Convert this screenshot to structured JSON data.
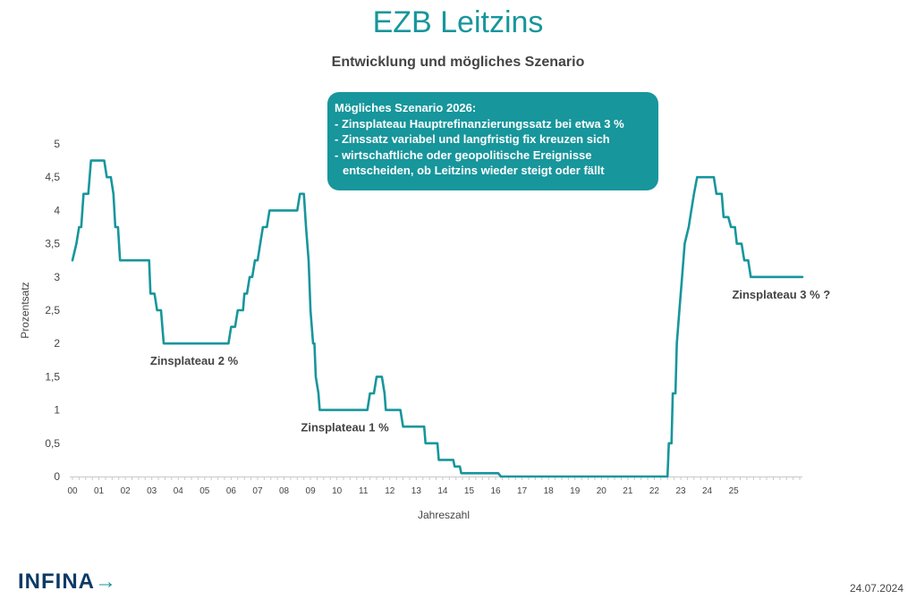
{
  "chart_data": {
    "type": "line",
    "title": "EZB Leitzins",
    "subtitle": "Entwicklung und mögliches Szenario",
    "xlabel": "Jahreszahl",
    "ylabel": "Prozentsatz",
    "ylim": [
      0,
      5
    ],
    "y_ticks": [
      {
        "value": 0,
        "label": "0"
      },
      {
        "value": 0.5,
        "label": "0,5"
      },
      {
        "value": 1,
        "label": "1"
      },
      {
        "value": 1.5,
        "label": "1,5"
      },
      {
        "value": 2,
        "label": "2"
      },
      {
        "value": 2.5,
        "label": "2,5"
      },
      {
        "value": 3,
        "label": "3"
      },
      {
        "value": 3.5,
        "label": "3,5"
      },
      {
        "value": 4,
        "label": "4"
      },
      {
        "value": 4.5,
        "label": "4,5"
      },
      {
        "value": 5,
        "label": "5"
      }
    ],
    "x_ticks": [
      {
        "value": 2000,
        "label": "00"
      },
      {
        "value": 2001,
        "label": "01"
      },
      {
        "value": 2002,
        "label": "02"
      },
      {
        "value": 2003,
        "label": "03"
      },
      {
        "value": 2004,
        "label": "04"
      },
      {
        "value": 2005,
        "label": "05"
      },
      {
        "value": 2006,
        "label": "06"
      },
      {
        "value": 2007,
        "label": "07"
      },
      {
        "value": 2008,
        "label": "08"
      },
      {
        "value": 2009,
        "label": "09"
      },
      {
        "value": 2010,
        "label": "10"
      },
      {
        "value": 2011,
        "label": "11"
      },
      {
        "value": 2012,
        "label": "12"
      },
      {
        "value": 2013,
        "label": "13"
      },
      {
        "value": 2014,
        "label": "14"
      },
      {
        "value": 2015,
        "label": "15"
      },
      {
        "value": 2016,
        "label": "16"
      },
      {
        "value": 2017,
        "label": "17"
      },
      {
        "value": 2018,
        "label": "18"
      },
      {
        "value": 2019,
        "label": "19"
      },
      {
        "value": 2020,
        "label": "20"
      },
      {
        "value": 2021,
        "label": "21"
      },
      {
        "value": 2022,
        "label": "22"
      },
      {
        "value": 2023,
        "label": "23"
      },
      {
        "value": 2024,
        "label": "24"
      },
      {
        "value": 2025,
        "label": "25"
      }
    ],
    "xlim": [
      2000,
      2027.6
    ],
    "grid": false,
    "color": "#17969c",
    "series": [
      {
        "points": [
          [
            2000.0,
            3.25
          ],
          [
            2000.15,
            3.5
          ],
          [
            2000.25,
            3.75
          ],
          [
            2000.33,
            3.75
          ],
          [
            2000.42,
            4.25
          ],
          [
            2000.6,
            4.25
          ],
          [
            2000.7,
            4.75
          ],
          [
            2001.2,
            4.75
          ],
          [
            2001.3,
            4.5
          ],
          [
            2001.45,
            4.5
          ],
          [
            2001.55,
            4.25
          ],
          [
            2001.62,
            3.75
          ],
          [
            2001.72,
            3.75
          ],
          [
            2001.8,
            3.25
          ],
          [
            2002.9,
            3.25
          ],
          [
            2002.95,
            2.75
          ],
          [
            2003.1,
            2.75
          ],
          [
            2003.2,
            2.5
          ],
          [
            2003.35,
            2.5
          ],
          [
            2003.45,
            2.0
          ],
          [
            2005.9,
            2.0
          ],
          [
            2006.0,
            2.25
          ],
          [
            2006.15,
            2.25
          ],
          [
            2006.25,
            2.5
          ],
          [
            2006.45,
            2.5
          ],
          [
            2006.5,
            2.75
          ],
          [
            2006.6,
            2.75
          ],
          [
            2006.7,
            3.0
          ],
          [
            2006.8,
            3.0
          ],
          [
            2006.9,
            3.25
          ],
          [
            2007.0,
            3.25
          ],
          [
            2007.1,
            3.5
          ],
          [
            2007.2,
            3.75
          ],
          [
            2007.35,
            3.75
          ],
          [
            2007.45,
            4.0
          ],
          [
            2008.5,
            4.0
          ],
          [
            2008.6,
            4.25
          ],
          [
            2008.75,
            4.25
          ],
          [
            2008.83,
            3.75
          ],
          [
            2008.93,
            3.25
          ],
          [
            2009.0,
            2.5
          ],
          [
            2009.1,
            2.0
          ],
          [
            2009.15,
            2.0
          ],
          [
            2009.2,
            1.5
          ],
          [
            2009.3,
            1.25
          ],
          [
            2009.35,
            1.0
          ],
          [
            2011.15,
            1.0
          ],
          [
            2011.25,
            1.25
          ],
          [
            2011.4,
            1.25
          ],
          [
            2011.5,
            1.5
          ],
          [
            2011.7,
            1.5
          ],
          [
            2011.8,
            1.25
          ],
          [
            2011.85,
            1.0
          ],
          [
            2012.4,
            1.0
          ],
          [
            2012.5,
            0.75
          ],
          [
            2013.3,
            0.75
          ],
          [
            2013.35,
            0.5
          ],
          [
            2013.8,
            0.5
          ],
          [
            2013.85,
            0.25
          ],
          [
            2014.4,
            0.25
          ],
          [
            2014.45,
            0.15
          ],
          [
            2014.65,
            0.15
          ],
          [
            2014.7,
            0.05
          ],
          [
            2016.1,
            0.05
          ],
          [
            2016.2,
            0.0
          ],
          [
            2022.5,
            0.0
          ],
          [
            2022.55,
            0.5
          ],
          [
            2022.65,
            0.5
          ],
          [
            2022.7,
            1.25
          ],
          [
            2022.8,
            1.25
          ],
          [
            2022.85,
            2.0
          ],
          [
            2022.95,
            2.5
          ],
          [
            2023.05,
            3.0
          ],
          [
            2023.15,
            3.5
          ],
          [
            2023.3,
            3.75
          ],
          [
            2023.4,
            4.0
          ],
          [
            2023.5,
            4.25
          ],
          [
            2023.62,
            4.5
          ],
          [
            2024.25,
            4.5
          ],
          [
            2024.35,
            4.25
          ],
          [
            2024.55,
            4.25
          ],
          [
            2024.62,
            3.9
          ],
          [
            2024.8,
            3.9
          ],
          [
            2024.9,
            3.75
          ],
          [
            2025.05,
            3.75
          ],
          [
            2025.12,
            3.5
          ],
          [
            2025.3,
            3.5
          ],
          [
            2025.4,
            3.25
          ],
          [
            2025.55,
            3.25
          ],
          [
            2025.65,
            3.0
          ],
          [
            2027.6,
            3.0
          ]
        ]
      }
    ],
    "annotations": [
      {
        "text": "Zinsplateau 2 %",
        "x": 2004.6,
        "y": 2.0,
        "pos": "below"
      },
      {
        "text": "Zinsplateau 1 %",
        "x": 2010.3,
        "y": 1.0,
        "pos": "below"
      },
      {
        "text": "Zinsplateau 3 % ?",
        "x": 2026.8,
        "y": 3.0,
        "pos": "below"
      }
    ]
  },
  "scenario": {
    "heading": "Mögliches Szenario 2026:",
    "line1": "- Zinsplateau Hauptrefinanzierungssatz bei etwa 3 %",
    "line2": "- Zinssatz variabel und langfristig fix kreuzen sich",
    "line3": "- wirtschaftliche oder geopolitische Ereignisse",
    "line4": "entscheiden, ob Leitzins wieder steigt oder fällt"
  },
  "footer": {
    "brand": "INFINA",
    "date": "24.07.2024"
  }
}
